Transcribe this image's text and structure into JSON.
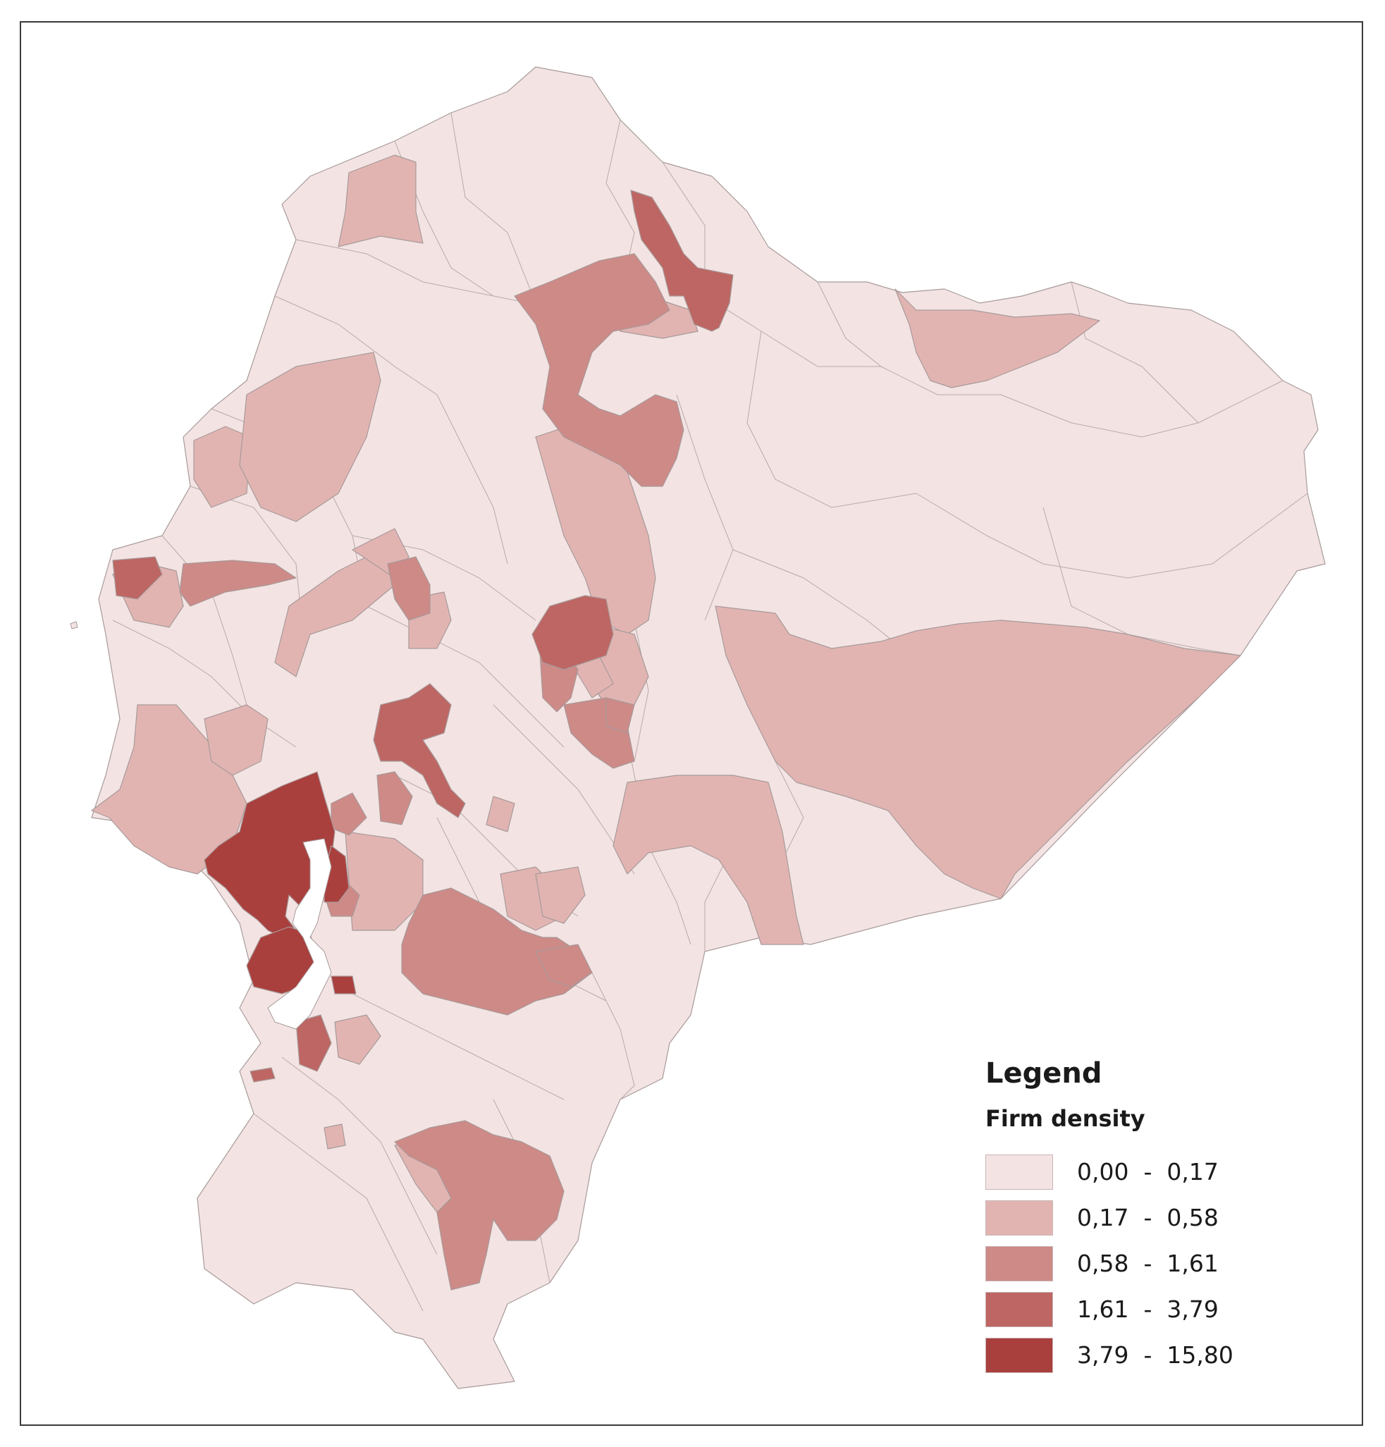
{
  "legend": {
    "title": "Legend",
    "subtitle": "Firm density",
    "classes": [
      {
        "label": "0,00  -  0,17",
        "color": "#f3e4e3"
      },
      {
        "label": "0,17  -  0,58",
        "color": "#e1b4b2"
      },
      {
        "label": "0,58  -  1,61",
        "color": "#cd8a87"
      },
      {
        "label": "1,61  -  3,79",
        "color": "#bd6663"
      },
      {
        "label": "3,79  -  15,80",
        "color": "#a9403e"
      }
    ]
  }
}
